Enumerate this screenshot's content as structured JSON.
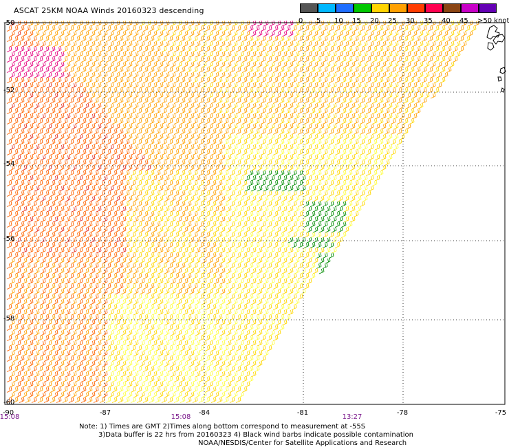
{
  "title": "ASCAT 25KM NOAA Winds 20160323 descending",
  "colorbar": {
    "labels": [
      "0",
      "5",
      "10",
      "15",
      "20",
      "25",
      "30",
      "35",
      "40",
      "45",
      ">50 knots"
    ],
    "colors": [
      "#555555",
      "#00b8ff",
      "#1e6eff",
      "#00c800",
      "#ffd400",
      "#ffa000",
      "#ff3c00",
      "#ff0050",
      "#8b4513",
      "#c800c8",
      "#6400b4"
    ]
  },
  "axes": {
    "lon_labels": [
      "-90",
      "-87",
      "-84",
      "-81",
      "-78",
      "-75"
    ],
    "lat_labels": [
      "-50",
      "-52",
      "-54",
      "-56",
      "-58",
      "-60"
    ]
  },
  "times": [
    "15:08",
    "15:08",
    "13:27"
  ],
  "notes": {
    "line1": "Note: 1) Times are GMT 2)Times along bottom correspond to measurement at -55S",
    "line2": "3)Data buffer is 22 hrs from 20160323 4) Black wind barbs indicate possible contamination",
    "line3": "NOAA/NESDIS/Center for Satellite Applications and Research"
  },
  "legend_colors": {
    "light": "#ffff3c",
    "yellow": "#ffd700",
    "orange": "#ffa000",
    "dark_orange": "#ff6400",
    "red": "#e6321e",
    "magenta": "#e6007d",
    "green": "#008c00",
    "grid": "#000000"
  }
}
